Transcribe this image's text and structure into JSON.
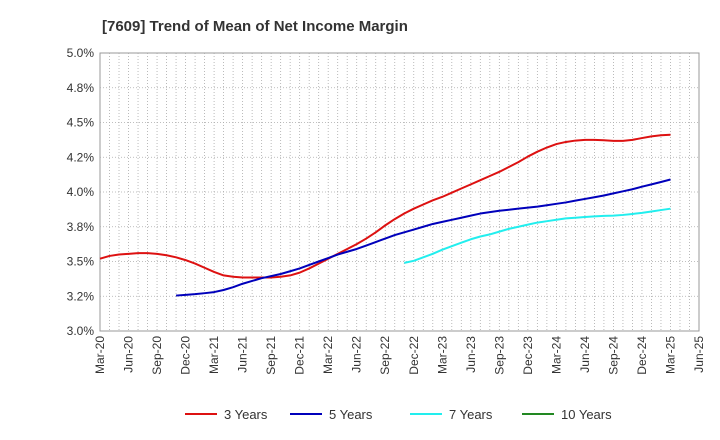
{
  "chart_data": {
    "type": "line",
    "title": "[7609]  Trend of Mean of Net Income Margin",
    "xlabel": "",
    "ylabel": "",
    "x_ticks": [
      "Mar-20",
      "Jun-20",
      "Sep-20",
      "Dec-20",
      "Mar-21",
      "Jun-21",
      "Sep-21",
      "Dec-21",
      "Mar-22",
      "Jun-22",
      "Sep-22",
      "Dec-22",
      "Mar-23",
      "Jun-23",
      "Sep-23",
      "Dec-23",
      "Mar-24",
      "Jun-24",
      "Sep-24",
      "Dec-24",
      "Mar-25",
      "Jun-25"
    ],
    "y_ticks": [
      "3.0%",
      "3.2%",
      "3.5%",
      "3.8%",
      "4.0%",
      "4.2%",
      "4.5%",
      "4.8%",
      "5.0%"
    ],
    "ylim": [
      3.0,
      5.0
    ],
    "grid": true,
    "legend_position": "bottom",
    "series": [
      {
        "name": "3 Years",
        "color": "#dd1111",
        "points": [
          [
            "Mar-20",
            3.52
          ],
          [
            "Apr-20",
            3.54
          ],
          [
            "May-20",
            3.55
          ],
          [
            "Jun-20",
            3.555
          ],
          [
            "Jul-20",
            3.56
          ],
          [
            "Aug-20",
            3.56
          ],
          [
            "Sep-20",
            3.555
          ],
          [
            "Oct-20",
            3.545
          ],
          [
            "Nov-20",
            3.53
          ],
          [
            "Dec-20",
            3.51
          ],
          [
            "Jan-21",
            3.485
          ],
          [
            "Feb-21",
            3.455
          ],
          [
            "Mar-21",
            3.425
          ],
          [
            "Apr-21",
            3.4
          ],
          [
            "May-21",
            3.39
          ],
          [
            "Jun-21",
            3.385
          ],
          [
            "Jul-21",
            3.385
          ],
          [
            "Aug-21",
            3.385
          ],
          [
            "Sep-21",
            3.385
          ],
          [
            "Oct-21",
            3.39
          ],
          [
            "Nov-21",
            3.4
          ],
          [
            "Dec-21",
            3.42
          ],
          [
            "Jan-22",
            3.45
          ],
          [
            "Feb-22",
            3.485
          ],
          [
            "Mar-22",
            3.52
          ],
          [
            "Apr-22",
            3.555
          ],
          [
            "May-22",
            3.59
          ],
          [
            "Jun-22",
            3.625
          ],
          [
            "Jul-22",
            3.665
          ],
          [
            "Aug-22",
            3.71
          ],
          [
            "Sep-22",
            3.76
          ],
          [
            "Oct-22",
            3.805
          ],
          [
            "Nov-22",
            3.845
          ],
          [
            "Dec-22",
            3.88
          ],
          [
            "Jan-23",
            3.91
          ],
          [
            "Feb-23",
            3.94
          ],
          [
            "Mar-23",
            3.965
          ],
          [
            "Apr-23",
            3.995
          ],
          [
            "May-23",
            4.025
          ],
          [
            "Jun-23",
            4.055
          ],
          [
            "Jul-23",
            4.085
          ],
          [
            "Aug-23",
            4.115
          ],
          [
            "Sep-23",
            4.145
          ],
          [
            "Oct-23",
            4.18
          ],
          [
            "Nov-23",
            4.215
          ],
          [
            "Dec-23",
            4.255
          ],
          [
            "Jan-24",
            4.29
          ],
          [
            "Feb-24",
            4.32
          ],
          [
            "Mar-24",
            4.345
          ],
          [
            "Apr-24",
            4.36
          ],
          [
            "May-24",
            4.37
          ],
          [
            "Jun-24",
            4.375
          ],
          [
            "Jul-24",
            4.375
          ],
          [
            "Aug-24",
            4.372
          ],
          [
            "Sep-24",
            4.368
          ],
          [
            "Oct-24",
            4.368
          ],
          [
            "Nov-24",
            4.375
          ],
          [
            "Dec-24",
            4.388
          ],
          [
            "Jan-25",
            4.4
          ],
          [
            "Feb-25",
            4.408
          ],
          [
            "Mar-25",
            4.412
          ]
        ]
      },
      {
        "name": "5 Years",
        "color": "#0000bb",
        "points": [
          [
            "Nov-20",
            3.255
          ],
          [
            "Dec-20",
            3.26
          ],
          [
            "Jan-21",
            3.265
          ],
          [
            "Feb-21",
            3.272
          ],
          [
            "Mar-21",
            3.28
          ],
          [
            "Apr-21",
            3.295
          ],
          [
            "May-21",
            3.315
          ],
          [
            "Jun-21",
            3.34
          ],
          [
            "Jul-21",
            3.36
          ],
          [
            "Aug-21",
            3.38
          ],
          [
            "Sep-21",
            3.395
          ],
          [
            "Oct-21",
            3.41
          ],
          [
            "Nov-21",
            3.43
          ],
          [
            "Dec-21",
            3.45
          ],
          [
            "Jan-22",
            3.475
          ],
          [
            "Feb-22",
            3.5
          ],
          [
            "Mar-22",
            3.525
          ],
          [
            "Apr-22",
            3.55
          ],
          [
            "May-22",
            3.57
          ],
          [
            "Jun-22",
            3.59
          ],
          [
            "Jul-22",
            3.615
          ],
          [
            "Aug-22",
            3.64
          ],
          [
            "Sep-22",
            3.665
          ],
          [
            "Oct-22",
            3.69
          ],
          [
            "Nov-22",
            3.71
          ],
          [
            "Dec-22",
            3.73
          ],
          [
            "Jan-23",
            3.75
          ],
          [
            "Feb-23",
            3.77
          ],
          [
            "Mar-23",
            3.785
          ],
          [
            "Apr-23",
            3.8
          ],
          [
            "May-23",
            3.815
          ],
          [
            "Jun-23",
            3.83
          ],
          [
            "Jul-23",
            3.845
          ],
          [
            "Aug-23",
            3.855
          ],
          [
            "Sep-23",
            3.865
          ],
          [
            "Oct-23",
            3.872
          ],
          [
            "Nov-23",
            3.88
          ],
          [
            "Dec-23",
            3.888
          ],
          [
            "Jan-24",
            3.895
          ],
          [
            "Feb-24",
            3.905
          ],
          [
            "Mar-24",
            3.915
          ],
          [
            "Apr-24",
            3.925
          ],
          [
            "May-24",
            3.938
          ],
          [
            "Jun-24",
            3.95
          ],
          [
            "Jul-24",
            3.962
          ],
          [
            "Aug-24",
            3.975
          ],
          [
            "Sep-24",
            3.99
          ],
          [
            "Oct-24",
            4.005
          ],
          [
            "Nov-24",
            4.02
          ],
          [
            "Dec-24",
            4.038
          ],
          [
            "Jan-25",
            4.055
          ],
          [
            "Feb-25",
            4.072
          ],
          [
            "Mar-25",
            4.09
          ]
        ]
      },
      {
        "name": "7 Years",
        "color": "#22eeee",
        "points": [
          [
            "Nov-22",
            3.49
          ],
          [
            "Dec-22",
            3.505
          ],
          [
            "Jan-23",
            3.53
          ],
          [
            "Feb-23",
            3.555
          ],
          [
            "Mar-23",
            3.585
          ],
          [
            "Apr-23",
            3.61
          ],
          [
            "May-23",
            3.635
          ],
          [
            "Jun-23",
            3.66
          ],
          [
            "Jul-23",
            3.68
          ],
          [
            "Aug-23",
            3.695
          ],
          [
            "Sep-23",
            3.715
          ],
          [
            "Oct-23",
            3.735
          ],
          [
            "Nov-23",
            3.75
          ],
          [
            "Dec-23",
            3.765
          ],
          [
            "Jan-24",
            3.78
          ],
          [
            "Feb-24",
            3.79
          ],
          [
            "Mar-24",
            3.8
          ],
          [
            "Apr-24",
            3.81
          ],
          [
            "May-24",
            3.815
          ],
          [
            "Jun-24",
            3.82
          ],
          [
            "Jul-24",
            3.825
          ],
          [
            "Aug-24",
            3.828
          ],
          [
            "Sep-24",
            3.83
          ],
          [
            "Oct-24",
            3.835
          ],
          [
            "Nov-24",
            3.842
          ],
          [
            "Dec-24",
            3.85
          ],
          [
            "Jan-25",
            3.86
          ],
          [
            "Feb-25",
            3.87
          ],
          [
            "Mar-25",
            3.88
          ]
        ]
      },
      {
        "name": "10 Years",
        "color": "#228822",
        "points": []
      }
    ]
  }
}
